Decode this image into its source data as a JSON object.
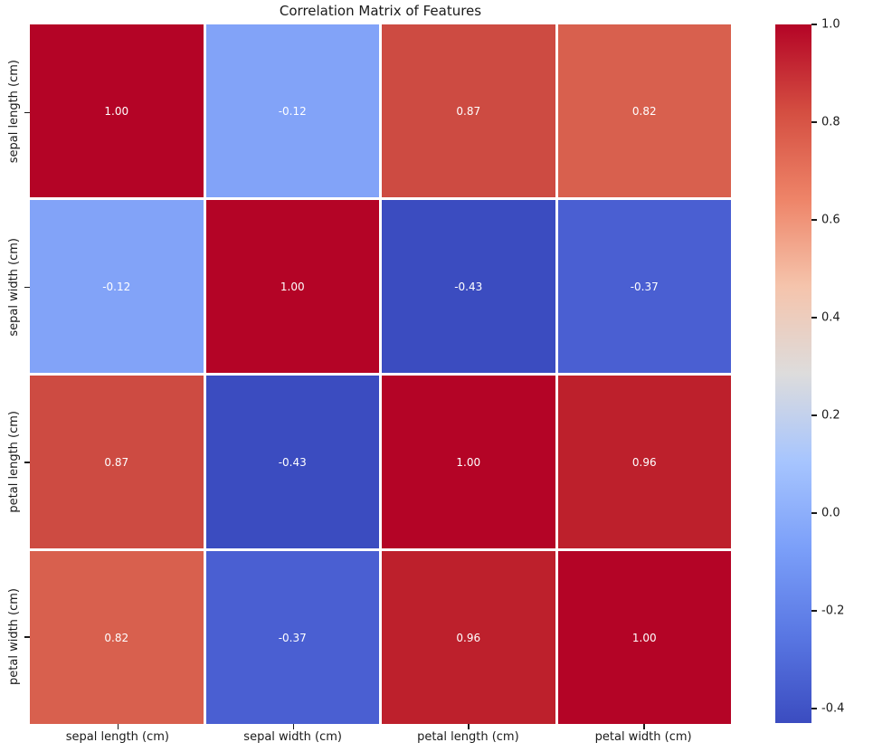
{
  "page": {
    "background": "#ffffff",
    "text_color": "#1a1a1a"
  },
  "chart_data": {
    "type": "heatmap",
    "title": "Correlation Matrix of Features",
    "colormap": "coolwarm",
    "x_categories": [
      "sepal length (cm)",
      "sepal width (cm)",
      "petal length (cm)",
      "petal width (cm)"
    ],
    "y_categories": [
      "sepal length (cm)",
      "sepal width (cm)",
      "petal length (cm)",
      "petal width (cm)"
    ],
    "values": [
      [
        1.0,
        -0.12,
        0.87,
        0.82
      ],
      [
        -0.12,
        1.0,
        -0.43,
        -0.37
      ],
      [
        0.87,
        -0.43,
        1.0,
        0.96
      ],
      [
        0.82,
        -0.37,
        0.96,
        1.0
      ]
    ],
    "cell_labels": [
      [
        "1.00",
        "-0.12",
        "0.87",
        "0.82"
      ],
      [
        "-0.12",
        "1.00",
        "-0.43",
        "-0.37"
      ],
      [
        "0.87",
        "-0.43",
        "1.00",
        "0.96"
      ],
      [
        "0.82",
        "-0.37",
        "0.96",
        "1.00"
      ]
    ],
    "cell_colors": [
      [
        "#b40426",
        "#82a3f8",
        "#cd4b42",
        "#d8604e"
      ],
      [
        "#82a3f8",
        "#b40426",
        "#3b4cc0",
        "#4a5fd2"
      ],
      [
        "#cd4b42",
        "#3b4cc0",
        "#b40426",
        "#bd202c"
      ],
      [
        "#d8604e",
        "#4a5fd2",
        "#bd202c",
        "#b40426"
      ]
    ],
    "annotation_text_color": "#ffffff",
    "grid_line_color": "#ffffff",
    "colorbar": {
      "vmin": -0.43,
      "vmax": 1.0,
      "ticks": [
        1.0,
        0.8,
        0.6,
        0.4,
        0.2,
        0.0,
        -0.2,
        -0.4
      ],
      "tick_labels": [
        "1.0",
        "0.8",
        "0.6",
        "0.4",
        "0.2",
        "0.0",
        "-0.2",
        "-0.4"
      ],
      "gradient_stops": [
        {
          "pos": 0,
          "color": "#b40426"
        },
        {
          "pos": 12.5,
          "color": "#d44e41"
        },
        {
          "pos": 25,
          "color": "#ee8468"
        },
        {
          "pos": 37.5,
          "color": "#f5c4ac"
        },
        {
          "pos": 50,
          "color": "#dddcdc"
        },
        {
          "pos": 62.5,
          "color": "#a7c5fe"
        },
        {
          "pos": 75,
          "color": "#7b9ff9"
        },
        {
          "pos": 87.5,
          "color": "#5977e3"
        },
        {
          "pos": 100,
          "color": "#3b4cc0"
        }
      ]
    }
  }
}
